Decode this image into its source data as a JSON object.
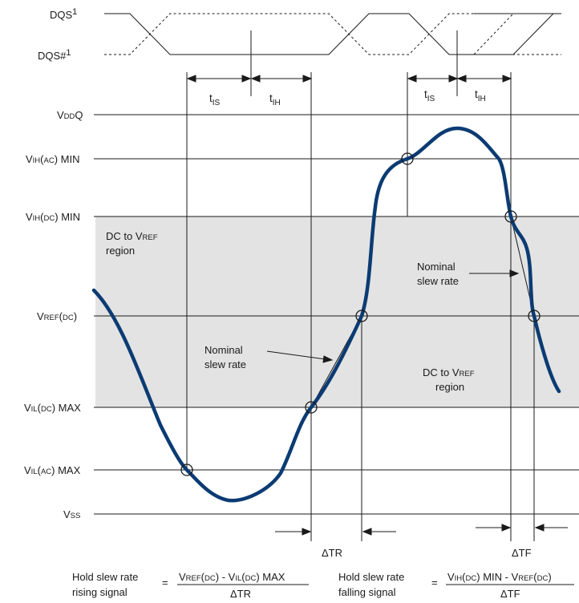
{
  "signals": {
    "dqs": "DQS",
    "dqs_sup": "1",
    "dqs_n": "DQS#",
    "dqs_n_sup": "1"
  },
  "timing": {
    "t_is": {
      "t": "t",
      "sub": "IS"
    },
    "t_ih": {
      "t": "t",
      "sub": "IH"
    }
  },
  "levels": {
    "vddq": {
      "main": "V",
      "sc": "DD",
      "tail": "Q",
      "tail_sc": "",
      "suffix": ""
    },
    "vih_ac_min": {
      "main": "V",
      "sc": "IH",
      "tail": "(",
      "tail_sc": "AC",
      "suffix": ") MIN"
    },
    "vih_dc_min": {
      "main": "V",
      "sc": "IH",
      "tail": "(",
      "tail_sc": "DC",
      "suffix": ") MIN"
    },
    "vref_dc": {
      "main": "V",
      "sc": "REF",
      "tail": "(",
      "tail_sc": "DC",
      "suffix": ")"
    },
    "vil_dc_max": {
      "main": "V",
      "sc": "IL",
      "tail": "(",
      "tail_sc": "DC",
      "suffix": ") MAX"
    },
    "vil_ac_max": {
      "main": "V",
      "sc": "IL",
      "tail": "(",
      "tail_sc": "AC",
      "suffix": ") MAX"
    },
    "vss": {
      "main": "V",
      "sc": "SS",
      "tail": "",
      "tail_sc": "",
      "suffix": ""
    }
  },
  "regions": {
    "upper": {
      "line1_a": "DC to V",
      "line1_sc": "REF",
      "line2": "region"
    },
    "lower": {
      "line1_a": "DC to V",
      "line1_sc": "REF",
      "line2": "region"
    }
  },
  "annotations": {
    "nominal_rising": {
      "line1": "Nominal",
      "line2": "slew rate"
    },
    "nominal_falling": {
      "line1": "Nominal",
      "line2": "slew rate"
    },
    "delta_tr": "ΔTR",
    "delta_tf": "ΔTF"
  },
  "formulas": {
    "rising": {
      "label1": "Hold slew rate",
      "label2": "rising signal",
      "eq": "=",
      "num_v1": "V",
      "num_sc1": "REF",
      "num_p1": "(",
      "num_sc2": "DC",
      "num_p2": ") - V",
      "num_sc3": "IL",
      "num_p3": "(",
      "num_sc4": "DC",
      "num_p4": ") MAX",
      "den": "ΔTR"
    },
    "falling": {
      "label1": "Hold slew rate",
      "label2": "falling signal",
      "eq": "=",
      "num_v1": "V",
      "num_sc1": "IH",
      "num_p1": "(",
      "num_sc2": "DC",
      "num_p2": ") MIN - V",
      "num_sc3": "REF",
      "num_p3": "(",
      "num_sc4": "DC",
      "num_p4": ")",
      "den": "ΔTF"
    }
  },
  "colors": {
    "signal": "#0b3b73",
    "region": "#e3e3e3",
    "line": "#1a1a1a"
  }
}
